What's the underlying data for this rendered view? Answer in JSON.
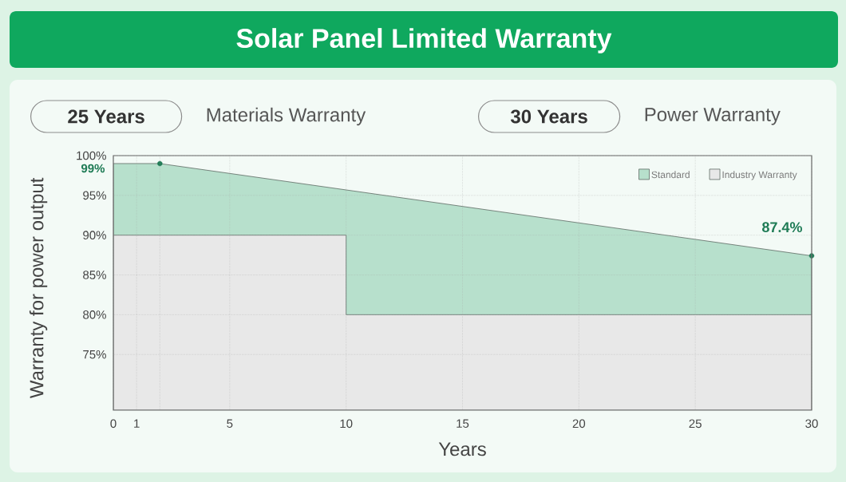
{
  "chart_data": {
    "type": "area",
    "title": "Solar Panel Limited Warranty",
    "xlabel": "Years",
    "ylabel": "Warranty for power output",
    "annotations": [
      "25 Years",
      "Materials Warranty",
      "30 Years",
      "Power Warranty",
      {
        "text": "99%",
        "x": 0,
        "y": 99
      },
      {
        "text": "87.4%",
        "x": 30,
        "y": 87.4
      }
    ],
    "xlim": [
      0,
      30
    ],
    "ylim": [
      68,
      100
    ],
    "xticks": [
      0,
      1,
      {
        "value": 2,
        "label": null
      },
      5,
      10,
      15,
      20,
      25,
      30
    ],
    "yticks": [
      {
        "value": 75,
        "label": "75%"
      },
      {
        "value": 80,
        "label": "80%"
      },
      {
        "value": 85,
        "label": "85%"
      },
      {
        "value": 90,
        "label": "90%"
      },
      {
        "value": 95,
        "label": "95%"
      },
      {
        "value": 100,
        "label": "100%"
      }
    ],
    "series": [
      {
        "name": "Standard",
        "color": "#b7e0cc",
        "x": [
          0,
          2,
          30
        ],
        "values": [
          99,
          99,
          87.4
        ]
      },
      {
        "name": "Industry Warranty",
        "color": "#e8e8e8",
        "x": [
          0,
          10,
          10,
          30
        ],
        "values": [
          90,
          90,
          80,
          80
        ]
      },
      {
        "type": "scatter",
        "color": "#1e7b55",
        "x": [
          2,
          30
        ],
        "values": [
          99,
          87.4
        ]
      }
    ],
    "grid": true,
    "legend": "top right"
  }
}
